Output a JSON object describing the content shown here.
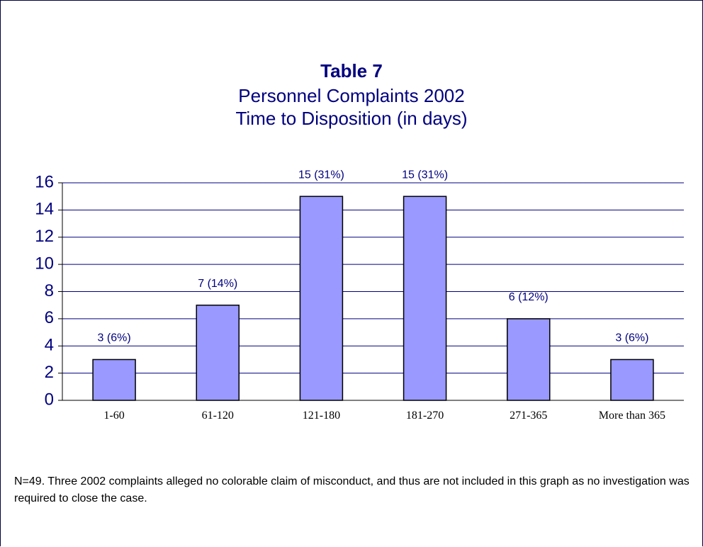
{
  "chart_data": {
    "type": "bar",
    "title": "Table 7",
    "subtitle": [
      "Personnel Complaints 2002",
      "Time to Disposition (in days)"
    ],
    "categories": [
      "1-60",
      "61-120",
      "121-180",
      "181-270",
      "271-365",
      "More than 365"
    ],
    "values": [
      3,
      7,
      15,
      15,
      6,
      3
    ],
    "value_labels": [
      "3 (6%)",
      "7 (14%)",
      "15 (31%)",
      "15 (31%)",
      "6 (12%)",
      "3 (6%)"
    ],
    "color": "#9999ff",
    "ylim": [
      0,
      16
    ],
    "yticks": [
      0,
      2,
      4,
      6,
      8,
      10,
      12,
      14,
      16
    ],
    "grid": true,
    "note": "N=49.  Three 2002 complaints alleged no colorable claim of misconduct, and thus are not included in this graph as no investigation was required to close the case."
  }
}
